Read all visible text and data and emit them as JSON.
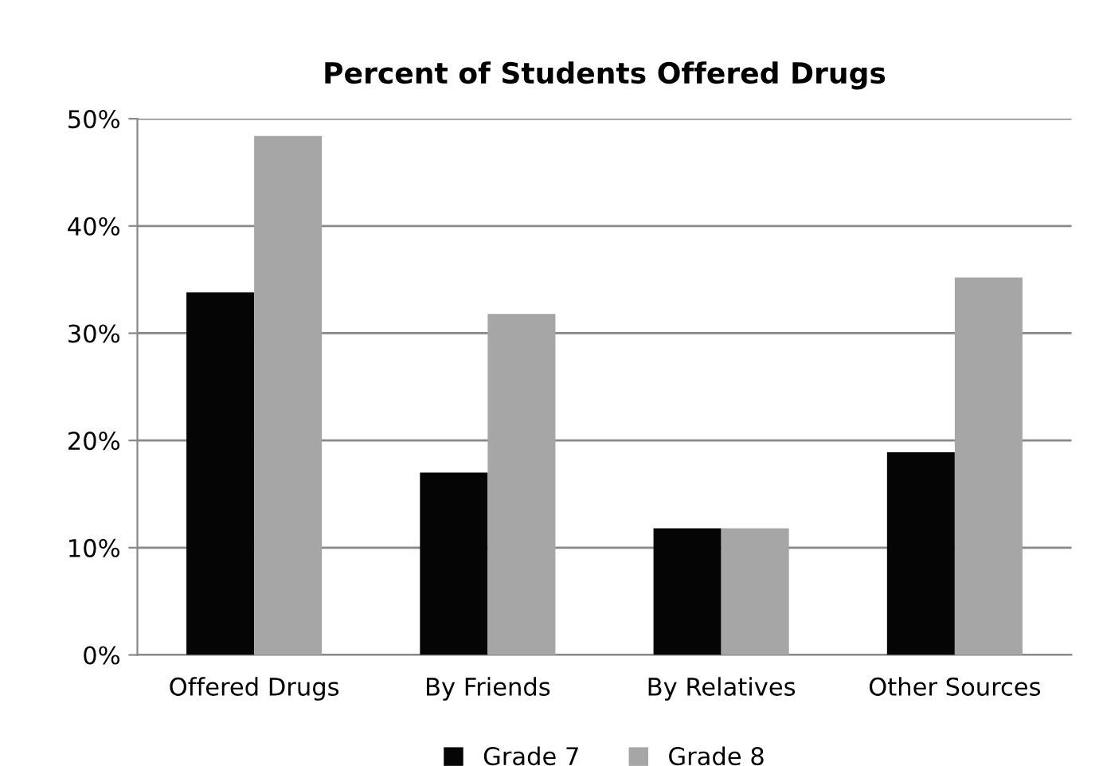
{
  "chart_data": {
    "type": "bar",
    "title": "Percent of Students Offered Drugs",
    "categories": [
      "Offered Drugs",
      "By Friends",
      "By Relatives",
      "Other Sources"
    ],
    "series": [
      {
        "name": "Grade 7",
        "color": "#050505",
        "values": [
          33.8,
          17.0,
          11.8,
          18.9
        ]
      },
      {
        "name": "Grade 8",
        "color": "#a6a6a6",
        "values": [
          48.4,
          31.8,
          11.8,
          35.2
        ]
      }
    ],
    "ylim": [
      0,
      50
    ],
    "yticks": [
      {
        "value": 0,
        "label": "0%"
      },
      {
        "value": 10,
        "label": "10%"
      },
      {
        "value": 20,
        "label": "20%"
      },
      {
        "value": 30,
        "label": "30%"
      },
      {
        "value": 40,
        "label": "40%"
      },
      {
        "value": 50,
        "label": "50%"
      }
    ],
    "grid": "y",
    "legend": "bottom"
  }
}
